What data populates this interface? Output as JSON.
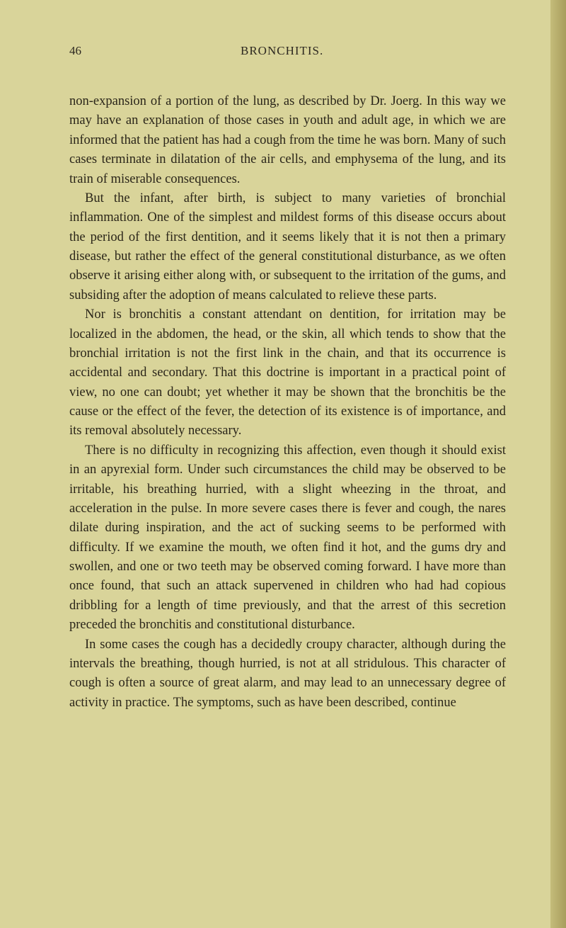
{
  "header": {
    "pageNumber": "46",
    "title": "BRONCHITIS."
  },
  "paragraphs": {
    "p1": "non-expansion of a portion of the lung, as described by Dr. Joerg. In this way we may have an explanation of those cases in youth and adult age, in which we are informed that the patient has had a cough from the time he was born. Many of such cases terminate in dilatation of the air cells, and emphysema of the lung, and its train of miserable consequences.",
    "p2": "But the infant, after birth, is subject to many varieties of bronchial inflammation. One of the simplest and mildest forms of this disease occurs about the period of the first dentition, and it seems likely that it is not then a primary disease, but rather the effect of the general constitutional disturbance, as we often observe it arising either along with, or subsequent to the irritation of the gums, and subsiding after the adoption of means calculated to relieve these parts.",
    "p3": "Nor is bronchitis a constant attendant on dentition, for irritation may be localized in the abdomen, the head, or the skin, all which tends to show that the bronchial irritation is not the first link in the chain, and that its occurrence is accidental and secondary. That this doctrine is important in a practical point of view, no one can doubt; yet whether it may be shown that the bronchitis be the cause or the effect of the fever, the detection of its existence is of importance, and its removal absolutely necessary.",
    "p4": "There is no difficulty in recognizing this affection, even though it should exist in an apyrexial form. Under such circumstances the child may be observed to be irritable, his breathing hurried, with a slight wheezing in the throat, and acceleration in the pulse. In more severe cases there is fever and cough, the nares dilate during inspiration, and the act of sucking seems to be performed with difficulty. If we examine the mouth, we often find it hot, and the gums dry and swollen, and one or two teeth may be observed coming forward. I have more than once found, that such an attack supervened in children who had had copious dribbling for a length of time previously, and that the arrest of this secretion preceded the bronchitis and constitutional disturbance.",
    "p5": "In some cases the cough has a decidedly croupy character, although during the intervals the breathing, though hurried, is not at all stridulous. This character of cough is often a source of great alarm, and may lead to an unnecessary degree of activity in practice. The symptoms, such as have been described, continue"
  }
}
